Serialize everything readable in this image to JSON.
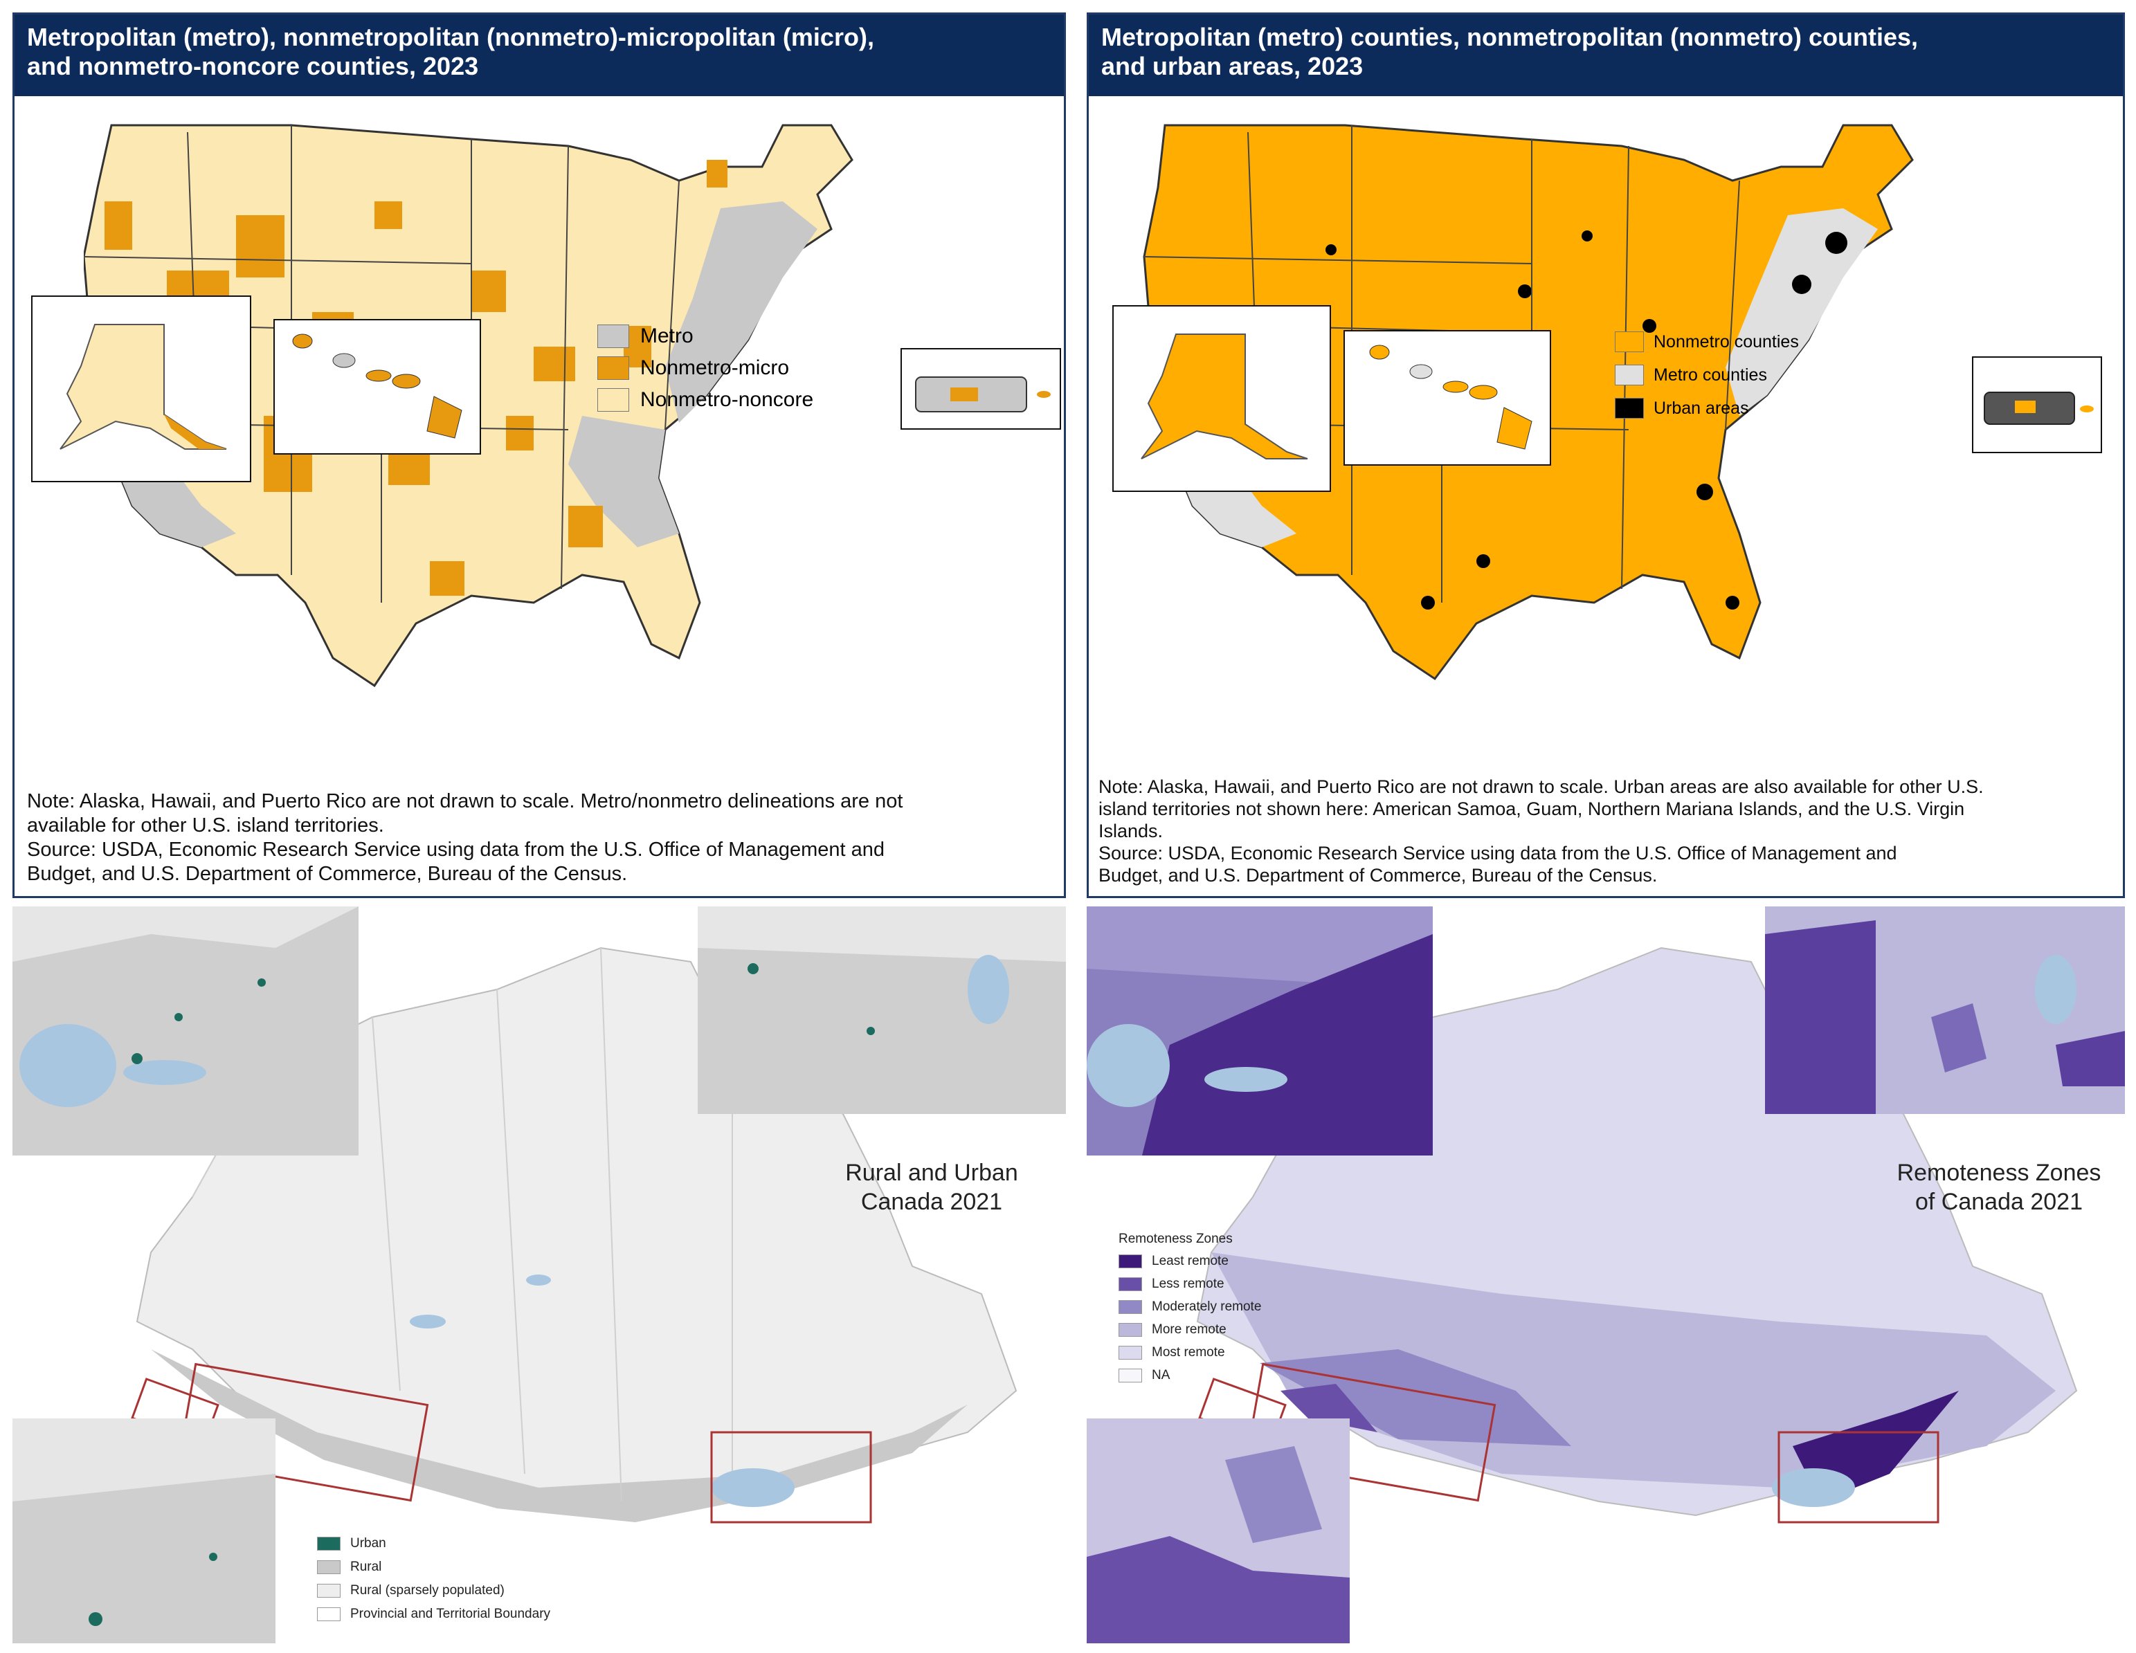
{
  "panel_us_left": {
    "title_line1": "Metropolitan (metro), nonmetropolitan (nonmetro)-micropolitan (micro),",
    "title_line2": "and nonmetro-noncore counties, 2023",
    "legend": [
      {
        "label": "Metro",
        "color": "#c8c8c8"
      },
      {
        "label": "Nonmetro-micro",
        "color": "#e79a10"
      },
      {
        "label": "Nonmetro-noncore",
        "color": "#fce8b2"
      }
    ],
    "note_lines": [
      "Note: Alaska, Hawaii, and Puerto Rico are not drawn to scale. Metro/nonmetro delineations are not",
      "available for other U.S. island territories.",
      "Source: USDA, Economic Research Service using data from the U.S. Office of Management and",
      "Budget, and U.S. Department of Commerce, Bureau of the Census."
    ]
  },
  "panel_us_right": {
    "title_line1": "Metropolitan (metro) counties, nonmetropolitan (nonmetro) counties,",
    "title_line2": "and urban areas, 2023",
    "legend": [
      {
        "label": "Nonmetro counties",
        "color": "#ffad00"
      },
      {
        "label": "Metro counties",
        "color": "#e0e0e0"
      },
      {
        "label": "Urban areas",
        "color": "#000000"
      }
    ],
    "note_lines": [
      "Note: Alaska, Hawaii, and Puerto Rico are not drawn to scale. Urban areas are also available for other U.S.",
      "island territories not shown here: American Samoa, Guam, Northern Mariana Islands, and the U.S. Virgin",
      "Islands.",
      "Source: USDA, Economic Research Service using data from the U.S. Office of Management and",
      "Budget, and U.S. Department of Commerce, Bureau of the Census."
    ]
  },
  "panel_canada_left": {
    "title_line1": "Rural and Urban",
    "title_line2": "Canada 2021",
    "legend": [
      {
        "label": "Urban",
        "color": "#1c6b5f"
      },
      {
        "label": "Rural",
        "color": "#c9c9c9"
      },
      {
        "label": "Rural (sparsely populated)",
        "color": "#eeeeee"
      },
      {
        "label": "Provincial and Territorial Boundary",
        "color": "#ffffff"
      }
    ]
  },
  "panel_canada_right": {
    "title_line1": "Remoteness Zones",
    "title_line2": "of Canada 2021",
    "legend_title": "Remoteness Zones",
    "legend": [
      {
        "label": "Least remote",
        "color": "#3d1a7a"
      },
      {
        "label": "Less remote",
        "color": "#6a4fa8"
      },
      {
        "label": "Moderately remote",
        "color": "#9189c6"
      },
      {
        "label": "More remote",
        "color": "#bcb8dc"
      },
      {
        "label": "Most remote",
        "color": "#dcdaee"
      },
      {
        "label": "NA",
        "color": "#f7f7fb"
      }
    ]
  }
}
